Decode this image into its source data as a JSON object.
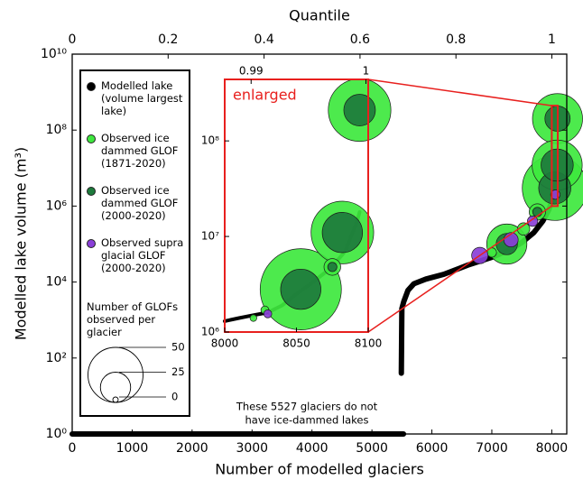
{
  "chart_data": {
    "type": "scatter",
    "x_label": "Number of modelled glaciers",
    "y_label": "Modelled lake volume (m³)",
    "x2_label": "Quantile",
    "log_y": true,
    "xlim": [
      0,
      8250
    ],
    "xticks": [
      0,
      1000,
      2000,
      3000,
      4000,
      5000,
      6000,
      7000,
      8000
    ],
    "x2lim": [
      0,
      1.031
    ],
    "x2ticks": [
      0,
      0.2,
      0.4,
      0.6,
      0.8,
      1
    ],
    "ylim": [
      1,
      10000000000
    ],
    "yticks": [
      {
        "value": 1,
        "label": "10⁰"
      },
      {
        "value": 100,
        "label": "10²"
      },
      {
        "value": 10000,
        "label": "10⁴"
      },
      {
        "value": 1000000,
        "label": "10⁶"
      },
      {
        "value": 100000000,
        "label": "10⁸"
      },
      {
        "value": 10000000000,
        "label": "10¹⁰"
      }
    ],
    "series": [
      {
        "name": "Modelled lake (volume largest lake)",
        "color": "#000000",
        "x": [
          0,
          5527,
          null,
          5490,
          5495,
          5500,
          5530,
          5600,
          5700,
          5900,
          6200,
          6600,
          7000,
          7300,
          7500,
          7700,
          7850,
          7950,
          8000,
          8050,
          8080,
          8094,
          null,
          8096
        ],
        "values": [
          1,
          1,
          null,
          40,
          300,
          2000,
          3000,
          6000,
          9000,
          12000,
          16000,
          28000,
          45000,
          70000,
          110000,
          200000,
          400000,
          800000,
          1300000,
          3000000,
          6000000,
          18000000,
          null,
          200000000
        ]
      },
      {
        "name": "Observed ice dammed GLOF (1871-2020)",
        "color": "#3ee83e",
        "x": [
          8050,
          8096,
          8090,
          7250,
          7760,
          7530,
          7000
        ],
        "values": [
          3000000,
          200000000,
          12000000,
          100000,
          700000,
          250000,
          60000
        ],
        "sizes": [
          60,
          45,
          45,
          35,
          11,
          7,
          4
        ]
      },
      {
        "name": "Observed ice dammed GLOF (2000-2020)",
        "color": "#1d7a3c",
        "x": [
          8050,
          8096,
          8090,
          7250,
          7760
        ],
        "values": [
          3000000,
          200000000,
          12000000,
          100000,
          700000
        ],
        "sizes": [
          27,
          20,
          27,
          16,
          4
        ]
      },
      {
        "name": "Observed supra glacial GLOF (2000-2020)",
        "color": "#8a3fd8",
        "x": [
          6800,
          7320,
          7680,
          8060
        ],
        "values": [
          50000,
          130000,
          400000,
          2000000
        ],
        "sizes": [
          11,
          9,
          5,
          4
        ]
      }
    ],
    "annotation": [
      "These 5527 glaciers do not",
      "have ice-dammed lakes"
    ],
    "size_legend": {
      "title": "Number of GLOFs observed per glacier",
      "values": [
        50,
        25,
        0
      ]
    },
    "inset": {
      "title": "enlarged",
      "log_y": true,
      "xlim": [
        8000,
        8100
      ],
      "xticks": [
        8000,
        8050,
        8100
      ],
      "x2lim": [
        0.9877,
        1.0002
      ],
      "x2ticks": [
        0.99,
        1
      ],
      "ylim": [
        1000000,
        440000000
      ],
      "yticks": [
        {
          "value": 1000000,
          "label": "10⁶"
        },
        {
          "value": 10000000,
          "label": "10⁷"
        },
        {
          "value": 100000000,
          "label": "10⁸"
        }
      ],
      "series": [
        {
          "color": "#000000",
          "x": [
            8000,
            8010,
            8020,
            8030,
            8040,
            8050,
            8060,
            8070,
            8078,
            8084,
            8088,
            8092,
            8094,
            null,
            8096
          ],
          "values": [
            1300000,
            1400000,
            1500000,
            1600000,
            1900000,
            2500000,
            3200000,
            4200000,
            5500000,
            7000000,
            10000000,
            14000000,
            18000000,
            null,
            200000000
          ]
        },
        {
          "color": "#3ee83e",
          "x": [
            8053,
            8094,
            8082,
            8075,
            8028,
            8020
          ],
          "values": [
            2800000,
            210000000,
            11000000,
            4800000,
            1700000,
            1400000
          ],
          "sizes": [
            60,
            45,
            45,
            8,
            1,
            0
          ]
        },
        {
          "color": "#1d7a3c",
          "x": [
            8053,
            8094,
            8082,
            8075
          ],
          "values": [
            2800000,
            210000000,
            11000000,
            4800000
          ],
          "sizes": [
            27,
            20,
            27,
            2
          ]
        },
        {
          "color": "#8a3fd8",
          "x": [
            8030
          ],
          "values": [
            1550000
          ],
          "sizes": [
            1
          ]
        }
      ]
    }
  }
}
